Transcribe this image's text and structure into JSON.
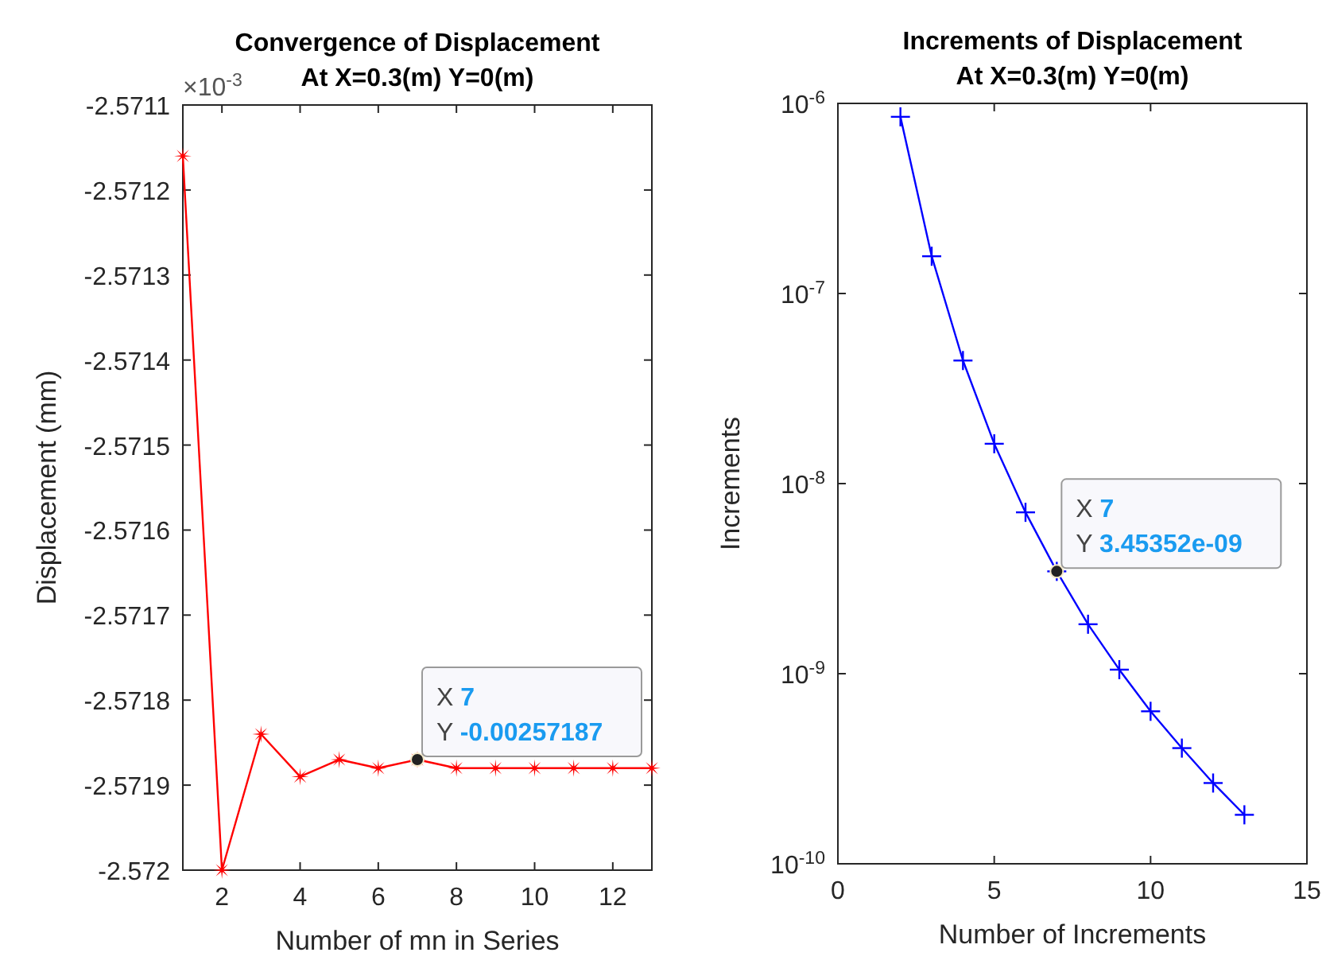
{
  "chart_data": [
    {
      "type": "line",
      "title": "Convergence of Displacement",
      "subtitle": "At X=0.3(m) Y=0(m)",
      "xlabel": "Number of mn in Series",
      "ylabel": "Displacement (mm)",
      "x": [
        1,
        2,
        3,
        4,
        5,
        6,
        7,
        8,
        9,
        10,
        11,
        12,
        13
      ],
      "series": [
        {
          "color": "#ff0000",
          "marker": "star",
          "values": [
            -2.57116,
            -2.572,
            -2.57184,
            -2.57189,
            -2.57187,
            -2.57188,
            -2.57187,
            -2.57188,
            -2.57188,
            -2.57188,
            -2.57188,
            -2.57188,
            -2.57188
          ]
        }
      ],
      "xlim": [
        1,
        13
      ],
      "xticks": [
        2,
        4,
        6,
        8,
        10,
        12
      ],
      "ylim": [
        -2.572,
        -2.5711
      ],
      "yticks": [
        -2.572,
        -2.5719,
        -2.5718,
        -2.5717,
        -2.5716,
        -2.5715,
        -2.5714,
        -2.5713,
        -2.5712,
        -2.5711
      ],
      "annotations": [
        "×10$^{-3}$",
        {
          "text": "X 7\nY -0.00257187",
          "x": 7,
          "y": -2.57187
        }
      ],
      "grid": false
    },
    {
      "type": "line",
      "title": "Increments of Displacement",
      "subtitle": "At X=0.3(m) Y=0(m)",
      "xlabel": "Number of Increments",
      "ylabel": "Increments",
      "x": [
        2,
        3,
        4,
        5,
        6,
        7,
        8,
        9,
        10,
        11,
        12,
        13
      ],
      "series": [
        {
          "color": "#0000ff",
          "marker": "cross",
          "values": [
            8.5e-07,
            1.57e-07,
            4.44e-08,
            1.62e-08,
            7.06e-09,
            3.45352e-09,
            1.82e-09,
            1.05e-09,
            6.34e-10,
            4.06e-10,
            2.66e-10,
            1.81e-10
          ]
        }
      ],
      "xlim": [
        0,
        15
      ],
      "xticks": [
        0,
        5,
        10,
        15
      ],
      "ylim": [
        1e-10,
        1e-06
      ],
      "log": "y",
      "yticks": [
        {
          "value": 1e-10,
          "label": "10$^{-10}$"
        },
        {
          "value": 1e-09,
          "label": "10$^{-9}$"
        },
        {
          "value": 1e-08,
          "label": "10$^{-8}$"
        },
        {
          "value": 1e-07,
          "label": "10$^{-7}$"
        },
        {
          "value": 1e-06,
          "label": "10$^{-6}$"
        }
      ],
      "annotations": [
        {
          "text": "X 7\nY 3.45352e-09",
          "x": 7,
          "y": 3.45352e-09
        }
      ],
      "grid": false
    }
  ]
}
